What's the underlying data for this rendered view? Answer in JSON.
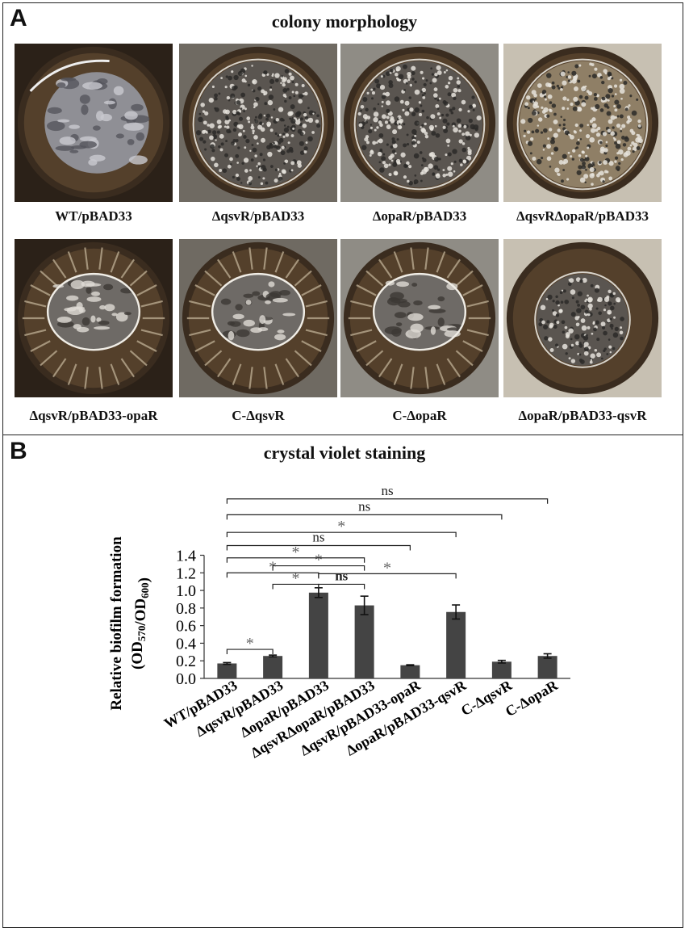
{
  "panel_a": {
    "letter": "A",
    "title": "colony morphology",
    "colonies": [
      {
        "label": "WT/pBAD33",
        "style": "smooth"
      },
      {
        "label": "ΔqsvR/pBAD33",
        "style": "rugose"
      },
      {
        "label": "ΔopaR/pBAD33",
        "style": "rugose"
      },
      {
        "label": "ΔqsvRΔopaR/pBAD33",
        "style": "rugose-light"
      },
      {
        "label": "ΔqsvR/pBAD33-opaR",
        "style": "wrinkled-rim"
      },
      {
        "label": "C-ΔqsvR",
        "style": "wrinkled-rim"
      },
      {
        "label": "C-ΔopaR",
        "style": "wrinkled-rim"
      },
      {
        "label": "ΔopaR/pBAD33-qsvR",
        "style": "rugose-center"
      }
    ]
  },
  "panel_b": {
    "letter": "B",
    "title": "crystal violet staining"
  },
  "chart_data": {
    "type": "bar",
    "title": "crystal violet staining",
    "ylabel": "Relative biofilm formation",
    "ylabel_sub": "(OD570/OD600)",
    "ylim": [
      0,
      1.4
    ],
    "yticks": [
      "0.0",
      "0.2",
      "0.4",
      "0.6",
      "0.8",
      "1.0",
      "1.2",
      "1.4"
    ],
    "categories": [
      "WT/pBAD33",
      "ΔqsvR/pBAD33",
      "ΔopaR/pBAD33",
      "ΔqsvRΔopaR/pBAD33",
      "ΔqsvR/pBAD33-opaR",
      "ΔopaR/pBAD33-qsvR",
      "C-ΔqsvR",
      "C-ΔopaR"
    ],
    "values": [
      0.17,
      0.255,
      0.975,
      0.83,
      0.15,
      0.755,
      0.19,
      0.255
    ],
    "errors": [
      0.01,
      0.01,
      0.055,
      0.105,
      0.005,
      0.08,
      0.015,
      0.025
    ],
    "bar_color": "#444444",
    "significance": [
      {
        "from": 0,
        "to": 1,
        "label": "*",
        "y": 0.33
      },
      {
        "from": 1,
        "to": 2,
        "label": "*",
        "y": 1.07
      },
      {
        "from": 2,
        "to": 3,
        "label": "ns",
        "y": 1.07
      },
      {
        "from": 0,
        "to": 2,
        "label": "*",
        "y": 1.2
      },
      {
        "from": 2,
        "to": 5,
        "label": "*",
        "y": 1.19
      },
      {
        "from": 1,
        "to": 3,
        "label": "*",
        "y": 1.28
      },
      {
        "from": 0,
        "to": 3,
        "label": "*",
        "y": 1.37
      },
      {
        "from": 0,
        "to": 4,
        "label": "ns",
        "y": 1.51
      },
      {
        "from": 0,
        "to": 5,
        "label": "*",
        "y": 1.66
      },
      {
        "from": 0,
        "to": 6,
        "label": "ns",
        "y": 1.86
      },
      {
        "from": 0,
        "to": 7,
        "label": "ns",
        "y": 2.04
      }
    ]
  }
}
